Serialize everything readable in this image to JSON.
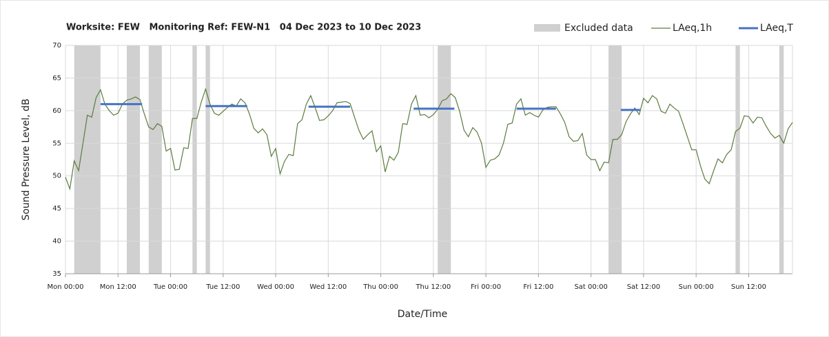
{
  "chart_data": {
    "type": "line",
    "title": "Worksite: FEW   Monitoring Ref: FEW-N1   04 Dec 2023 to 10 Dec 2023",
    "xlabel": "Date/Time",
    "ylabel": "Sound Pressure Level, dB",
    "xlim": [
      0,
      166
    ],
    "ylim": [
      35,
      70
    ],
    "yticks": [
      35,
      40,
      45,
      50,
      55,
      60,
      65,
      70
    ],
    "xticks": [
      {
        "value": 0,
        "label": "Mon 00:00"
      },
      {
        "value": 12,
        "label": "Mon 12:00"
      },
      {
        "value": 24,
        "label": "Tue 00:00"
      },
      {
        "value": 36,
        "label": "Tue 12:00"
      },
      {
        "value": 48,
        "label": "Wed 00:00"
      },
      {
        "value": 60,
        "label": "Wed 12:00"
      },
      {
        "value": 72,
        "label": "Thu 00:00"
      },
      {
        "value": 84,
        "label": "Thu 12:00"
      },
      {
        "value": 96,
        "label": "Fri 00:00"
      },
      {
        "value": 108,
        "label": "Fri 12:00"
      },
      {
        "value": 120,
        "label": "Sat 00:00"
      },
      {
        "value": 132,
        "label": "Sat 12:00"
      },
      {
        "value": 144,
        "label": "Sun 00:00"
      },
      {
        "value": 156,
        "label": "Sun 12:00"
      }
    ],
    "grid": true,
    "legend": "top-right",
    "series": [
      {
        "name": "Excluded data",
        "color": "#d0d0d0",
        "ranges": [
          [
            2,
            8
          ],
          [
            14,
            17
          ],
          [
            19,
            22
          ],
          [
            29,
            30
          ],
          [
            32,
            33
          ],
          [
            85,
            88
          ],
          [
            124,
            127
          ],
          [
            153,
            154
          ],
          [
            163,
            164
          ]
        ]
      },
      {
        "name": "LAeq,1h",
        "color": "#5b7b3e",
        "x": [
          0,
          1,
          2,
          3,
          4,
          5,
          6,
          7,
          8,
          9,
          10,
          11,
          12,
          13,
          14,
          15,
          16,
          17,
          18,
          19,
          20,
          21,
          22,
          23,
          24,
          25,
          26,
          27,
          28,
          29,
          30,
          31,
          32,
          33,
          34,
          35,
          36,
          37,
          38,
          39,
          40,
          41,
          42,
          43,
          44,
          45,
          46,
          47,
          48,
          49,
          50,
          51,
          52,
          53,
          54,
          55,
          56,
          57,
          58,
          59,
          60,
          61,
          62,
          63,
          64,
          65,
          66,
          67,
          68,
          69,
          70,
          71,
          72,
          73,
          74,
          75,
          76,
          77,
          78,
          79,
          80,
          81,
          82,
          83,
          84,
          85,
          86,
          87,
          88,
          89,
          90,
          91,
          92,
          93,
          94,
          95,
          96,
          97,
          98,
          99,
          100,
          101,
          102,
          103,
          104,
          105,
          106,
          107,
          108,
          109,
          110,
          111,
          112,
          113,
          114,
          115,
          116,
          117,
          118,
          119,
          120,
          121,
          122,
          123,
          124,
          125,
          126,
          127,
          128,
          129,
          130,
          131,
          132,
          133,
          134,
          135,
          136,
          137,
          138,
          139,
          140,
          141,
          142,
          143,
          144,
          145,
          146,
          147,
          148,
          149,
          150,
          151,
          152,
          153,
          154,
          155,
          156,
          157,
          158,
          159,
          160,
          161,
          162,
          163,
          164,
          165,
          166
        ],
        "values": [
          49.8,
          48,
          52.3,
          50.8,
          55,
          59.3,
          59,
          62,
          63.2,
          61,
          60,
          59.3,
          59.6,
          61,
          61.6,
          61.8,
          62.1,
          61.7,
          59.5,
          57.5,
          57.1,
          58,
          57.6,
          53.8,
          54.2,
          50.9,
          51,
          54.3,
          54.2,
          58.8,
          58.8,
          61.3,
          63.3,
          61,
          59.6,
          59.3,
          59.9,
          60.5,
          61,
          60.7,
          61.8,
          61.2,
          59.5,
          57.3,
          56.6,
          57.2,
          56.3,
          53,
          54.2,
          50.3,
          52.2,
          53.3,
          53.1,
          58,
          58.6,
          61,
          62.3,
          60.5,
          58.5,
          58.6,
          59.2,
          60,
          61.2,
          61.3,
          61.4,
          61.1,
          59,
          57,
          55.6,
          56.3,
          56.9,
          53.7,
          54.6,
          50.6,
          53,
          52.4,
          53.6,
          58,
          57.9,
          61,
          62.3,
          59.3,
          59.4,
          58.9,
          59.4,
          60.2,
          61.5,
          61.8,
          62.6,
          62,
          59.9,
          57,
          56,
          57.4,
          56.7,
          55,
          51.3,
          52.4,
          52.6,
          53.2,
          55,
          57.9,
          58.1,
          61,
          61.8,
          59.3,
          59.7,
          59.3,
          59,
          60.1,
          60.5,
          60.6,
          60.6,
          59.5,
          58.2,
          56,
          55.3,
          55.4,
          56.5,
          53.2,
          52.5,
          52.5,
          50.8,
          52.1,
          52,
          55.6,
          55.6,
          56.3,
          58.3,
          59.5,
          60.4,
          59.4,
          61.9,
          61.2,
          62.3,
          61.8,
          59.9,
          59.6,
          61,
          60.4,
          59.9,
          58,
          56,
          54,
          54,
          51.5,
          49.5,
          48.8,
          50.8,
          52.6,
          52,
          53.3,
          54,
          56.8,
          57.3,
          59.2,
          59.1,
          58.1,
          59,
          58.9,
          57.6,
          56.5,
          55.8,
          56.2,
          55,
          57.2,
          58.2
        ]
      },
      {
        "name": "LAeq,T",
        "color": "#4472c4",
        "x": [
          [
            8,
            17.5
          ],
          [
            32,
            41.5
          ],
          [
            55.5,
            65
          ],
          [
            79.5,
            88.8
          ],
          [
            103,
            112
          ],
          [
            126.8,
            131.2
          ]
        ],
        "values": [
          61.0,
          60.7,
          60.6,
          60.3,
          60.3,
          60.1
        ]
      }
    ]
  }
}
